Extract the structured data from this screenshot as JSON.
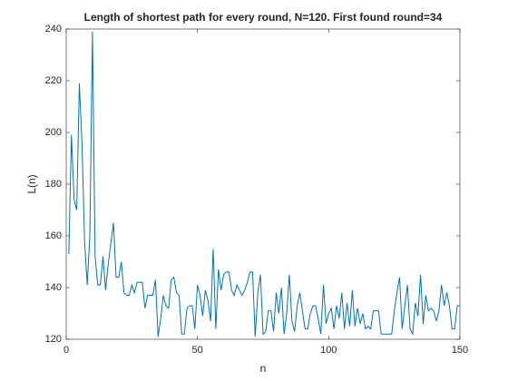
{
  "chart_data": {
    "type": "line",
    "title": "Length of shortest path for every round, N=120. First found round=34",
    "x_label": "n",
    "y_label": "L(n)",
    "x": [
      1,
      2,
      3,
      4,
      5,
      6,
      7,
      8,
      9,
      10,
      11,
      12,
      13,
      14,
      15,
      16,
      17,
      18,
      19,
      20,
      21,
      22,
      23,
      24,
      25,
      26,
      27,
      28,
      29,
      30,
      31,
      32,
      33,
      34,
      35,
      36,
      37,
      38,
      39,
      40,
      41,
      42,
      43,
      44,
      45,
      46,
      47,
      48,
      49,
      50,
      51,
      52,
      53,
      54,
      55,
      56,
      57,
      58,
      59,
      60,
      61,
      62,
      63,
      64,
      65,
      66,
      67,
      68,
      69,
      70,
      71,
      72,
      73,
      74,
      75,
      76,
      77,
      78,
      79,
      80,
      81,
      82,
      83,
      84,
      85,
      86,
      87,
      88,
      89,
      90,
      91,
      92,
      93,
      94,
      95,
      96,
      97,
      98,
      99,
      100,
      101,
      102,
      103,
      104,
      105,
      106,
      107,
      108,
      109,
      110,
      111,
      112,
      113,
      114,
      115,
      116,
      117,
      118,
      119,
      120,
      121,
      122,
      123,
      124,
      125,
      126,
      127,
      128,
      129,
      130,
      131,
      132,
      133,
      134,
      135,
      136,
      137,
      138,
      139,
      140,
      141,
      142,
      143,
      144,
      145,
      146,
      147,
      148,
      149,
      150
    ],
    "series": [
      {
        "color": "#0072BD",
        "values": [
          153,
          199,
          174,
          170,
          219,
          196,
          158,
          141,
          160,
          239,
          152,
          141,
          141,
          152,
          139,
          149,
          157,
          165,
          144,
          144,
          150,
          138,
          137,
          137,
          141,
          138,
          142,
          142,
          142,
          132,
          137,
          137,
          137,
          143,
          121,
          128,
          137,
          133,
          132,
          143,
          144,
          138,
          137,
          122,
          122,
          132,
          133,
          133,
          124,
          141,
          137,
          129,
          139,
          135,
          127,
          155,
          124,
          147,
          139,
          145,
          146,
          146,
          139,
          137,
          141,
          139,
          137,
          139,
          142,
          146,
          146,
          121,
          138,
          145,
          122,
          123,
          131,
          131,
          123,
          138,
          130,
          140,
          122,
          130,
          145,
          127,
          123,
          133,
          138,
          131,
          124,
          124,
          130,
          133,
          133,
          128,
          122,
          141,
          126,
          130,
          132,
          124,
          133,
          128,
          138,
          124,
          134,
          125,
          139,
          125,
          132,
          126,
          130,
          124,
          125,
          124,
          131,
          131,
          131,
          122,
          122,
          122,
          122,
          122,
          131,
          138,
          144,
          124,
          133,
          141,
          124,
          122,
          134,
          129,
          145,
          126,
          137,
          131,
          132,
          131,
          127,
          131,
          141,
          133,
          138,
          133,
          124,
          124,
          133,
          133
        ]
      }
    ],
    "xlim": [
      0,
      150
    ],
    "xticks": [
      0,
      50,
      100,
      150
    ],
    "ylim": [
      120,
      240
    ],
    "yticks": [
      120,
      140,
      160,
      180,
      200,
      220,
      240
    ]
  }
}
